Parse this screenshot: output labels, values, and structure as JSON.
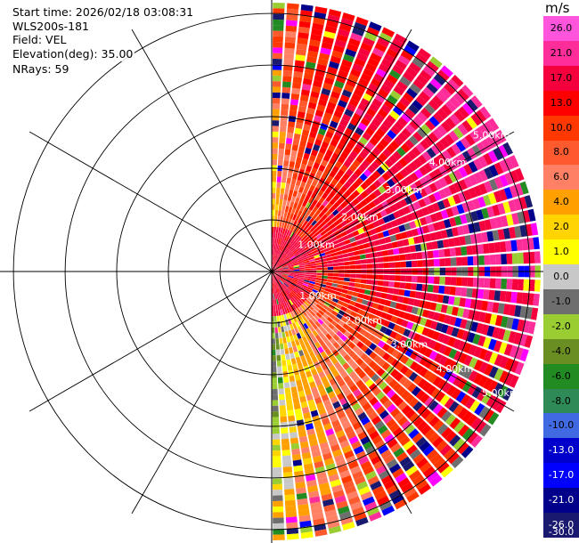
{
  "header": {
    "start_time": "Start time: 2026/02/18 03:08:31",
    "instrument": "WLS200s-181",
    "field": "Field: VEL",
    "elevation": "Elevation(deg): 35.00",
    "nrays": "NRays: 59"
  },
  "colorbar": {
    "unit": "m/s",
    "ticks": [
      "26.0",
      "21.0",
      "17.0",
      "13.0",
      "10.0",
      "8.0",
      "6.0",
      "4.0",
      "2.0",
      "1.0",
      "0.0",
      "-1.0",
      "-2.0",
      "-4.0",
      "-6.0",
      "-8.0",
      "-10.0",
      "-13.0",
      "-17.0",
      "-21.0",
      "-26.0",
      "-30.0"
    ],
    "colors": [
      "#ff55dd",
      "#ff2d9a",
      "#f5003c",
      "#ff0000",
      "#ff3800",
      "#ff5a2e",
      "#ff8064",
      "#ffa000",
      "#ffd400",
      "#ffff00",
      "#c8c8c8",
      "#6e6e6e",
      "#9acd32",
      "#6b8e23",
      "#228b22",
      "#2e8b57",
      "#4169e1",
      "#0000cd",
      "#0000ff",
      "#00008b",
      "#191970"
    ]
  },
  "chart_data": {
    "type": "heatmap",
    "projection": "polar PPI (plan position indicator), data on the eastern half only",
    "field": "VEL",
    "units": "m/s",
    "elevation_deg": 35.0,
    "n_rays": 59,
    "azimuth_range_deg": [
      0,
      180
    ],
    "range_rings_km": [
      1.0,
      2.0,
      3.0,
      4.0,
      5.0
    ],
    "range_ring_labels": [
      "1.00km",
      "2.00km",
      "3.00km",
      "4.00km",
      "5.00km"
    ],
    "max_range_km": 5.0,
    "spoke_angles_deg": [
      0,
      30,
      60,
      90,
      120,
      150,
      180,
      210,
      240,
      270,
      300,
      330
    ],
    "grid": true,
    "color_scale_min": -30.0,
    "color_scale_max": 26.0,
    "color_scale_ticks": [
      26.0,
      21.0,
      17.0,
      13.0,
      10.0,
      8.0,
      6.0,
      4.0,
      2.0,
      1.0,
      0.0,
      -1.0,
      -2.0,
      -4.0,
      -6.0,
      -8.0,
      -10.0,
      -13.0,
      -17.0,
      -21.0,
      -26.0,
      -30.0
    ],
    "velocity_by_azimuth_approx": [
      {
        "azimuth_deg": 0,
        "typical_ms": 3.0
      },
      {
        "azimuth_deg": 10,
        "typical_ms": 8.0
      },
      {
        "azimuth_deg": 30,
        "typical_ms": 11.0
      },
      {
        "azimuth_deg": 60,
        "typical_ms": 15.0
      },
      {
        "azimuth_deg": 90,
        "typical_ms": 14.0
      },
      {
        "azimuth_deg": 120,
        "typical_ms": 10.0
      },
      {
        "azimuth_deg": 150,
        "typical_ms": 6.0
      },
      {
        "azimuth_deg": 170,
        "typical_ms": 2.0
      },
      {
        "azimuth_deg": 180,
        "typical_ms": -3.0
      }
    ]
  }
}
